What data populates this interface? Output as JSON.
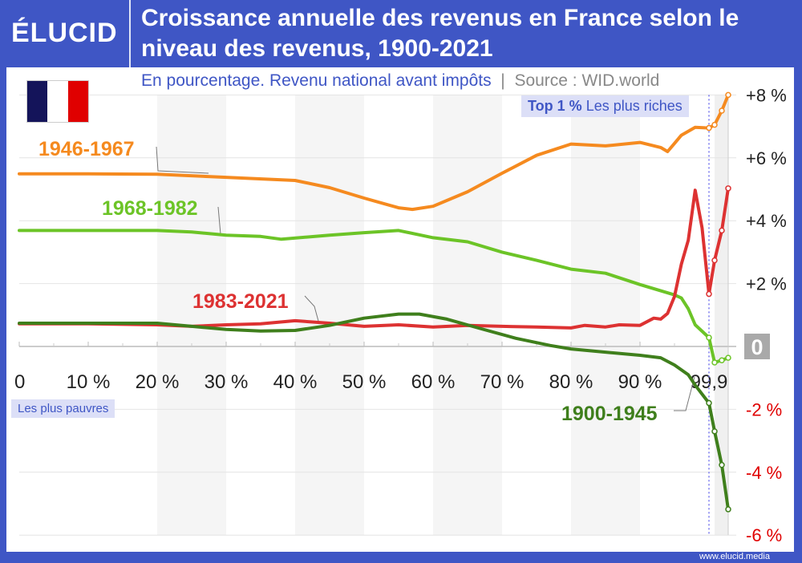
{
  "header": {
    "logo": "ÉLUCID",
    "title": "Croissance annuelle des revenus en France selon le niveau des revenus, 1900-2021",
    "subtitle": "En pourcentage. Revenu national avant impôts",
    "source": "Source : WID.world"
  },
  "footer": {
    "url": "www.elucid.media"
  },
  "flag": {
    "colors": [
      "#14145a",
      "#ffffff",
      "#e00000"
    ]
  },
  "annotations": {
    "poor": "Les plus pauvres",
    "top_bold": "Top 1 %",
    "top_rest": "Les plus riches"
  },
  "chart_data": {
    "type": "line",
    "title": "Croissance annuelle des revenus en France selon le niveau des revenus, 1900-2021",
    "ylim": [
      -6,
      8
    ],
    "yticks": [
      8,
      6,
      4,
      2,
      0,
      -2,
      -4,
      -6
    ],
    "ytick_labels": [
      "+8 %",
      "+6 %",
      "+4 %",
      "+2 %",
      "0",
      "-2 %",
      "-4 %",
      "-6 %"
    ],
    "xticks": [
      0,
      10,
      20,
      30,
      40,
      50,
      60,
      70,
      80,
      90,
      99.9
    ],
    "xtick_labels": [
      "0",
      "10 %",
      "20 %",
      "30 %",
      "40 %",
      "50 %",
      "60 %",
      "70 %",
      "80 %",
      "90 %",
      "99,9"
    ],
    "grid": true,
    "series": [
      {
        "name": "1946-1967",
        "color": "#f58a1f",
        "x": [
          0,
          10,
          20,
          30,
          40,
          45,
          50,
          55,
          57,
          60,
          65,
          70,
          75,
          80,
          85,
          90,
          93,
          94,
          95,
          96,
          98,
          99.9,
          99.99,
          99.999,
          99.9999
        ],
        "y": [
          5.49,
          5.49,
          5.48,
          5.38,
          5.28,
          5.05,
          4.72,
          4.41,
          4.36,
          4.46,
          4.92,
          5.51,
          6.08,
          6.44,
          6.38,
          6.49,
          6.33,
          6.2,
          6.46,
          6.72,
          6.97,
          6.95,
          7.05,
          7.5,
          8.0
        ]
      },
      {
        "name": "1968-1982",
        "color": "#6cc427",
        "x": [
          0,
          10,
          20,
          25,
          30,
          35,
          38,
          45,
          50,
          55,
          60,
          65,
          70,
          75,
          80,
          85,
          90,
          95,
          96,
          97,
          98,
          99.9,
          99.99,
          99.999,
          99.9999
        ],
        "y": [
          3.69,
          3.69,
          3.69,
          3.64,
          3.54,
          3.5,
          3.41,
          3.54,
          3.62,
          3.69,
          3.46,
          3.33,
          3.0,
          2.74,
          2.46,
          2.33,
          1.97,
          1.64,
          1.54,
          1.2,
          0.69,
          0.28,
          -0.51,
          -0.44,
          -0.36
        ]
      },
      {
        "name": "1983-2021",
        "color": "#dd3232",
        "x": [
          0,
          10,
          20,
          25,
          30,
          35,
          40,
          45,
          50,
          55,
          60,
          65,
          70,
          75,
          80,
          82,
          85,
          87,
          90,
          92,
          93,
          94,
          95,
          96,
          97,
          98,
          99,
          99.9,
          99.99,
          99.999,
          99.9999
        ],
        "y": [
          0.72,
          0.72,
          0.69,
          0.64,
          0.69,
          0.72,
          0.82,
          0.74,
          0.64,
          0.69,
          0.62,
          0.67,
          0.64,
          0.62,
          0.59,
          0.67,
          0.62,
          0.69,
          0.67,
          0.9,
          0.87,
          1.05,
          1.59,
          2.62,
          3.38,
          4.97,
          3.77,
          1.67,
          2.74,
          3.69,
          5.03
        ]
      },
      {
        "name": "1900-1945",
        "color": "#3f7f1c",
        "x": [
          0,
          10,
          20,
          25,
          30,
          35,
          40,
          45,
          50,
          55,
          58,
          62,
          67,
          72,
          77,
          80,
          85,
          90,
          93,
          95,
          97,
          98,
          99.9,
          99.99,
          99.999,
          99.9999
        ],
        "y": [
          0.74,
          0.74,
          0.74,
          0.64,
          0.54,
          0.49,
          0.51,
          0.67,
          0.9,
          1.03,
          1.03,
          0.87,
          0.56,
          0.26,
          0.03,
          -0.08,
          -0.18,
          -0.28,
          -0.36,
          -0.59,
          -0.9,
          -1.23,
          -1.8,
          -2.7,
          -3.77,
          -5.18
        ]
      }
    ]
  }
}
